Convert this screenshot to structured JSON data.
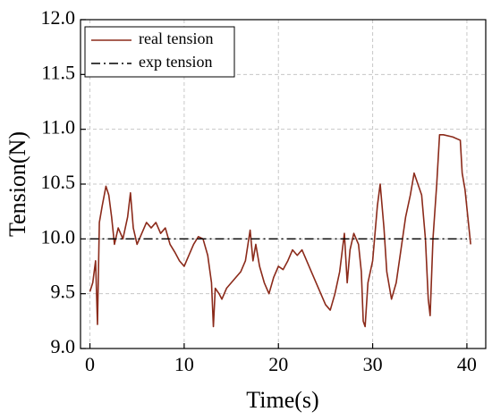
{
  "chart_data": {
    "type": "line",
    "xlabel": "Time(s)",
    "ylabel": "Tension(N)",
    "xlim": [
      -1,
      42
    ],
    "ylim": [
      9,
      12
    ],
    "xticks": [
      0,
      10,
      20,
      30,
      40
    ],
    "yticks": [
      {
        "value": 9,
        "label": "9.0"
      },
      9.5,
      {
        "value": 10,
        "label": "10.0"
      },
      10.5,
      {
        "value": 11,
        "label": "11.0"
      },
      11.5,
      {
        "value": 12,
        "label": "12.0"
      }
    ],
    "grid": true,
    "legend": "upper left",
    "series": [
      {
        "name": "real tension",
        "color": "#8b2a1a",
        "style": "solid",
        "x": [
          0,
          0.3,
          0.6,
          0.8,
          1.0,
          1.3,
          1.7,
          2.0,
          2.3,
          2.6,
          3.0,
          3.5,
          4.0,
          4.3,
          4.6,
          5.0,
          5.5,
          6.0,
          6.5,
          7.0,
          7.5,
          8.0,
          8.5,
          9.0,
          9.5,
          10.0,
          10.5,
          11.0,
          11.5,
          12.0,
          12.5,
          12.9,
          13.1,
          13.3,
          13.7,
          14.0,
          14.5,
          15.0,
          15.5,
          16.0,
          16.5,
          17.0,
          17.3,
          17.6,
          18.0,
          18.5,
          19.0,
          19.5,
          20.0,
          20.5,
          21.0,
          21.5,
          22.0,
          22.5,
          23.0,
          23.5,
          24.0,
          24.5,
          25.0,
          25.5,
          26.0,
          26.5,
          27.0,
          27.3,
          27.6,
          28.0,
          28.5,
          28.8,
          29.0,
          29.2,
          29.5,
          30.0,
          30.5,
          30.8,
          31.2,
          31.5,
          32.0,
          32.5,
          33.0,
          33.5,
          34.0,
          34.4,
          34.8,
          35.2,
          35.6,
          35.9,
          36.1,
          36.4,
          36.8,
          37.1,
          37.5,
          38.5,
          39.3,
          39.5,
          39.8,
          40.1,
          40.4
        ],
        "values": [
          9.52,
          9.6,
          9.8,
          9.22,
          10.15,
          10.3,
          10.48,
          10.4,
          10.2,
          9.95,
          10.1,
          10.0,
          10.2,
          10.42,
          10.1,
          9.95,
          10.05,
          10.15,
          10.1,
          10.15,
          10.05,
          10.1,
          9.95,
          9.88,
          9.8,
          9.75,
          9.85,
          9.95,
          10.02,
          10.0,
          9.85,
          9.6,
          9.2,
          9.55,
          9.5,
          9.45,
          9.55,
          9.6,
          9.65,
          9.7,
          9.8,
          10.08,
          9.8,
          9.95,
          9.75,
          9.6,
          9.5,
          9.65,
          9.75,
          9.72,
          9.8,
          9.9,
          9.85,
          9.9,
          9.8,
          9.7,
          9.6,
          9.5,
          9.4,
          9.35,
          9.5,
          9.7,
          10.05,
          9.6,
          9.9,
          10.05,
          9.95,
          9.7,
          9.25,
          9.2,
          9.6,
          9.8,
          10.3,
          10.5,
          10.1,
          9.7,
          9.45,
          9.6,
          9.9,
          10.2,
          10.4,
          10.6,
          10.5,
          10.4,
          10.0,
          9.45,
          9.3,
          10.0,
          10.5,
          10.95,
          10.95,
          10.93,
          10.9,
          10.6,
          10.45,
          10.2,
          9.95
        ]
      },
      {
        "name": "exp tension",
        "color": "#000000",
        "style": "dashdot",
        "x": [
          0,
          40
        ],
        "values": [
          10,
          10
        ]
      }
    ]
  }
}
